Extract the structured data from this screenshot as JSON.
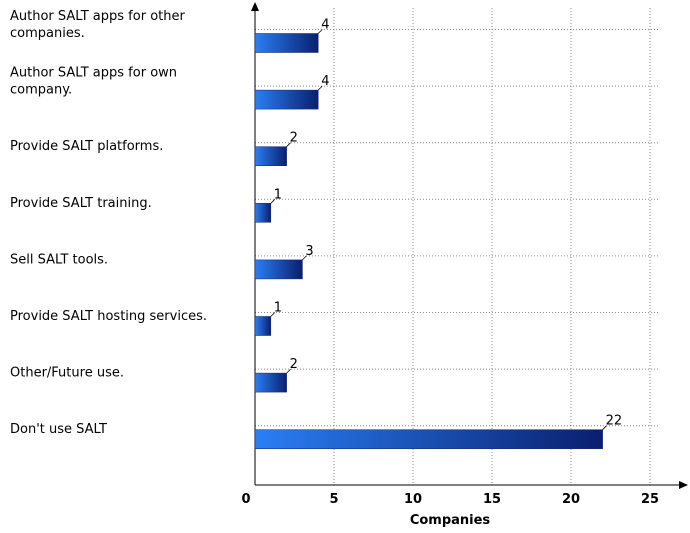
{
  "chart_data": {
    "type": "bar",
    "orientation": "horizontal",
    "categories": [
      [
        "Author SALT apps for other",
        "companies."
      ],
      [
        "Author SALT apps for own",
        "company."
      ],
      [
        "Provide SALT platforms."
      ],
      [
        "Provide SALT training."
      ],
      [
        "Sell SALT tools."
      ],
      [
        "Provide SALT hosting services."
      ],
      [
        "Other/Future use."
      ],
      [
        "Don't use SALT"
      ]
    ],
    "values": [
      4,
      4,
      2,
      1,
      3,
      1,
      2,
      22
    ],
    "value_labels": [
      "4",
      "4",
      "2",
      "1",
      "3",
      "1",
      "2",
      "22"
    ],
    "xlabel": "Companies",
    "ylabel": "",
    "xlim": [
      0,
      27
    ],
    "xticks": [
      0,
      5,
      10,
      15,
      20,
      25
    ],
    "xtick_labels": [
      "0",
      "5",
      "10",
      "15",
      "20",
      "25"
    ],
    "grid": true,
    "bar_color_dark": "#0a1f6e",
    "bar_color_light": "#2a7ff5"
  }
}
